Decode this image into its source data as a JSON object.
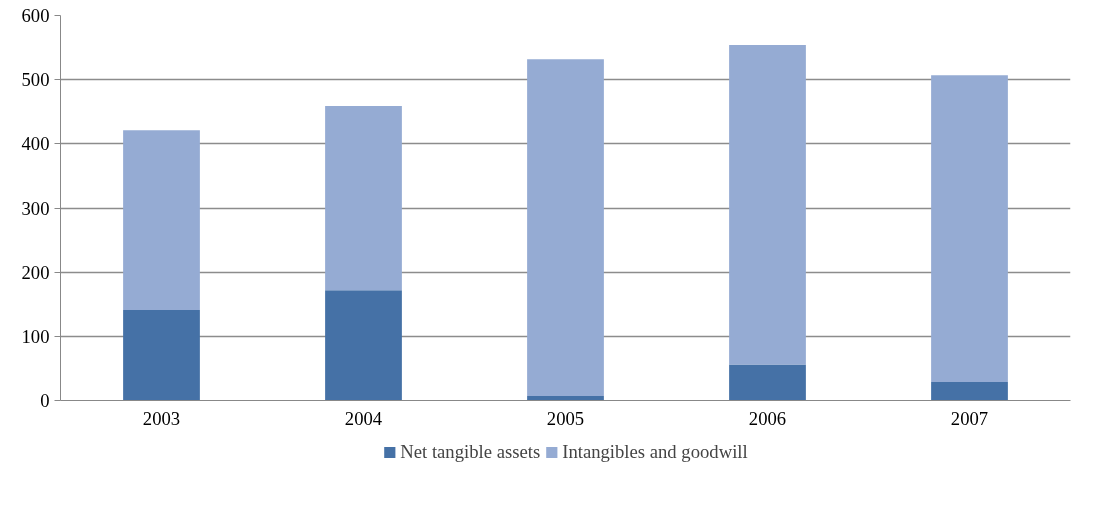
{
  "chart_data": {
    "type": "bar",
    "stacked": true,
    "categories": [
      "2003",
      "2004",
      "2005",
      "2006",
      "2007"
    ],
    "series": [
      {
        "name": "Net tangible assets",
        "color": "#4571a6",
        "values": [
          141,
          172,
          7,
          56,
          29
        ]
      },
      {
        "name": "Intangibles and goodwill",
        "color": "#95abd3",
        "values": [
          280,
          287,
          525,
          498,
          478
        ]
      }
    ],
    "ylim": [
      0,
      600
    ],
    "yticks": [
      0,
      100,
      200,
      300,
      400,
      500,
      600
    ],
    "grid": "y",
    "legend": "bottom"
  }
}
